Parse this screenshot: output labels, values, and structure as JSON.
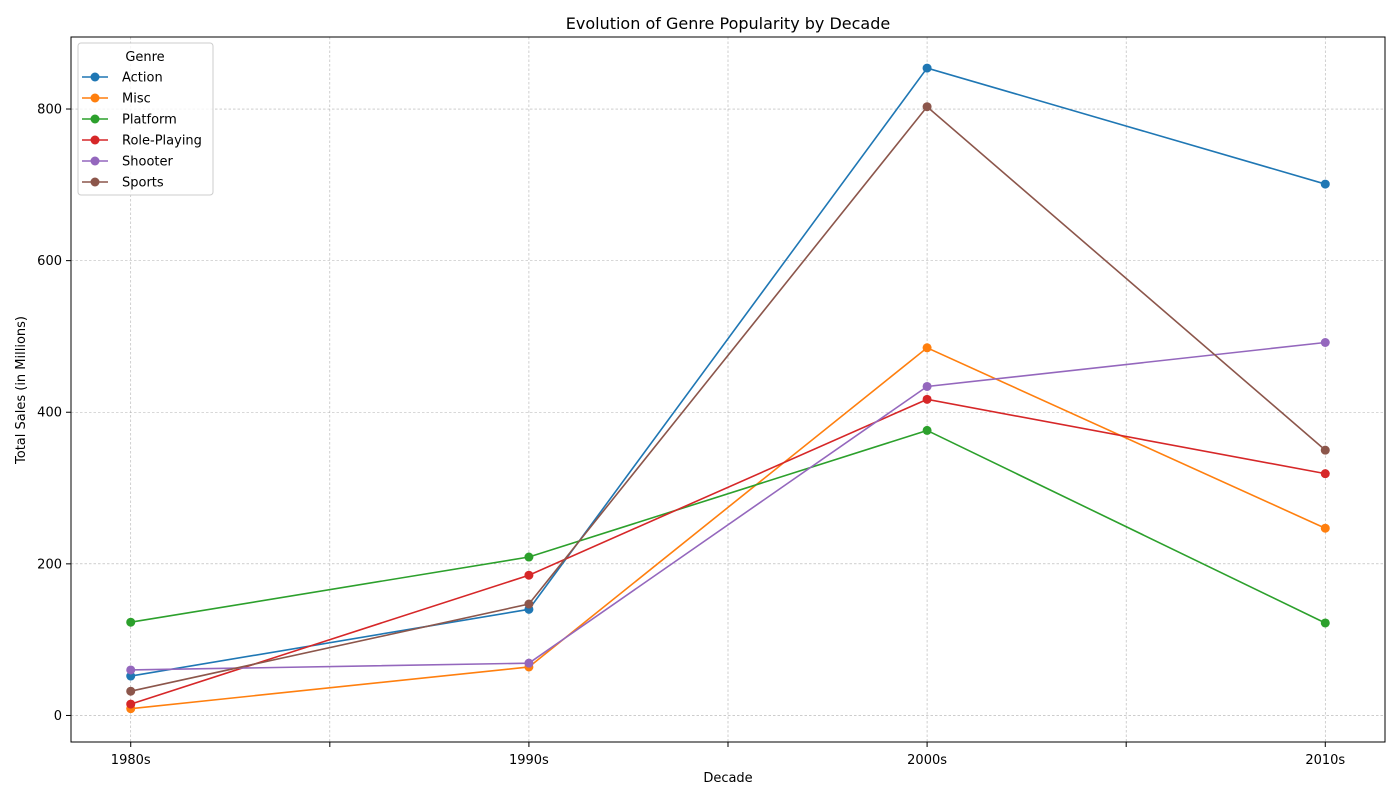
{
  "chart_data": {
    "type": "line",
    "title": "Evolution of Genre Popularity by Decade",
    "xlabel": "Decade",
    "ylabel": "Total Sales (in Millions)",
    "categories": [
      "1980s",
      "1990s",
      "2000s",
      "2010s"
    ],
    "ylim": [
      -35,
      895
    ],
    "yticks": [
      0,
      200,
      400,
      600,
      800
    ],
    "grid": true,
    "legend": {
      "title": "Genre",
      "position": "top-left"
    },
    "series": [
      {
        "name": "Action",
        "color": "#1f77b4",
        "values": [
          52,
          140,
          854,
          701
        ]
      },
      {
        "name": "Misc",
        "color": "#ff7f0e",
        "values": [
          9,
          64,
          485,
          247
        ]
      },
      {
        "name": "Platform",
        "color": "#2ca02c",
        "values": [
          123,
          209,
          376,
          122
        ]
      },
      {
        "name": "Role-Playing",
        "color": "#d62728",
        "values": [
          15,
          185,
          417,
          319
        ]
      },
      {
        "name": "Shooter",
        "color": "#9467bd",
        "values": [
          60,
          69,
          434,
          492
        ]
      },
      {
        "name": "Sports",
        "color": "#8c564b",
        "values": [
          32,
          147,
          803,
          350
        ]
      }
    ]
  }
}
